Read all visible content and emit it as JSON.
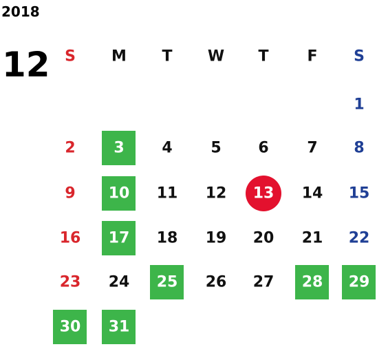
{
  "year": "2018",
  "month": "12",
  "weekdays": [
    "S",
    "M",
    "T",
    "W",
    "T",
    "F",
    "S"
  ],
  "weeks": [
    [
      null,
      null,
      null,
      null,
      null,
      null,
      1
    ],
    [
      2,
      {
        "day": 3,
        "mark": "green"
      },
      4,
      5,
      6,
      7,
      8
    ],
    [
      9,
      {
        "day": 10,
        "mark": "green"
      },
      11,
      12,
      {
        "day": 13,
        "mark": "red-circle"
      },
      14,
      15
    ],
    [
      16,
      {
        "day": 17,
        "mark": "green"
      },
      18,
      19,
      20,
      21,
      22
    ],
    [
      23,
      24,
      {
        "day": 25,
        "mark": "green"
      },
      26,
      27,
      {
        "day": 28,
        "mark": "green"
      },
      {
        "day": 29,
        "mark": "green"
      }
    ],
    [
      {
        "day": 30,
        "mark": "green"
      },
      {
        "day": 31,
        "mark": "green"
      },
      null,
      null,
      null,
      null,
      null
    ]
  ]
}
